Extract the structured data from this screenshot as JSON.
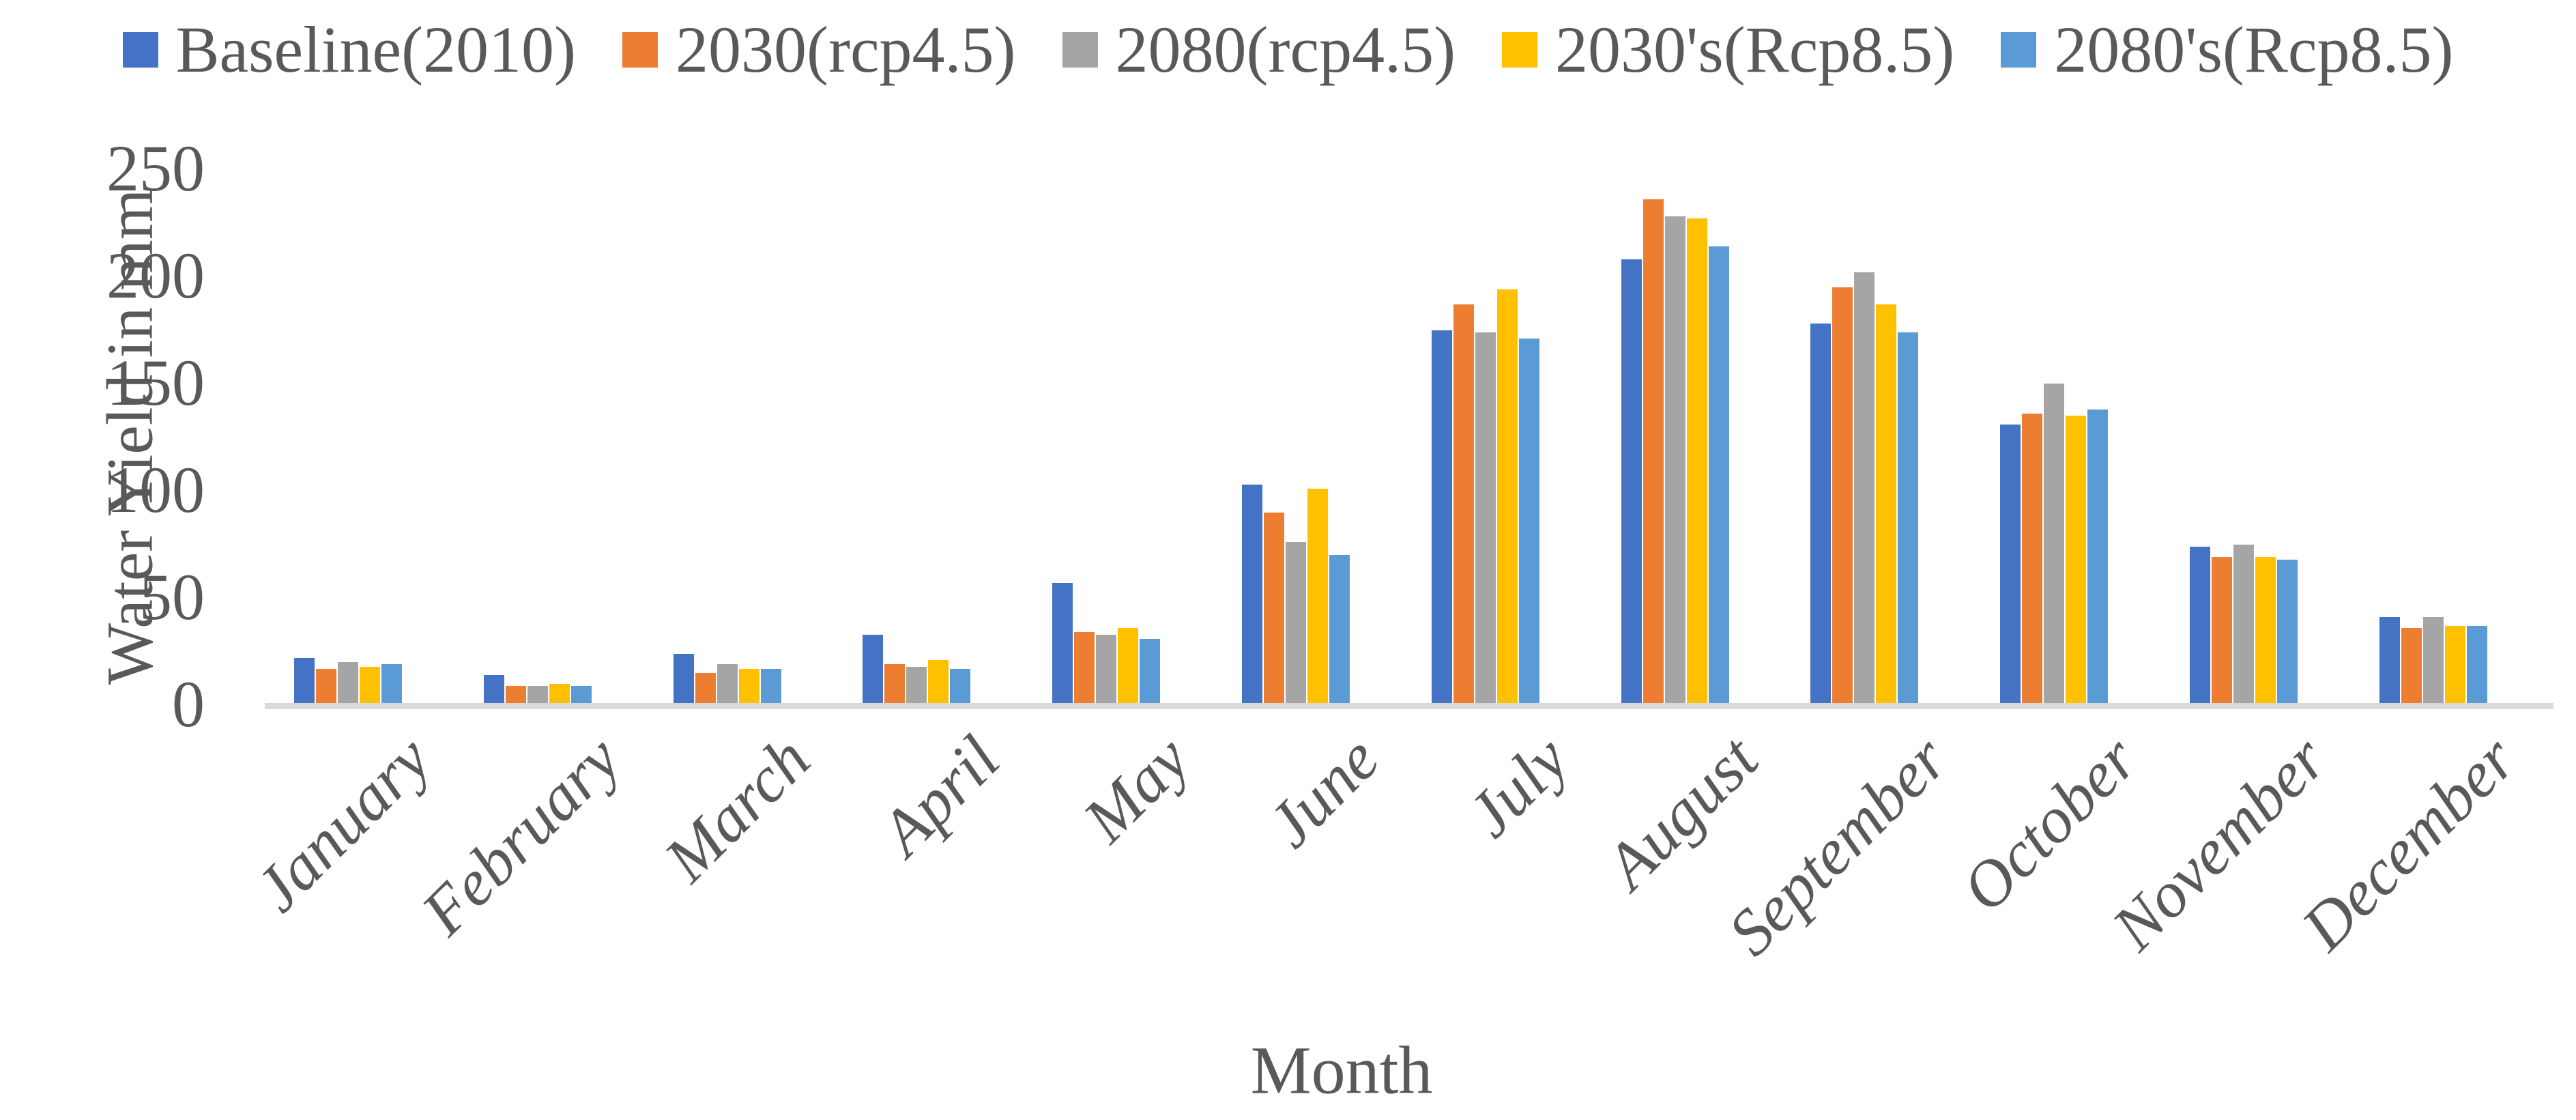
{
  "chart_data": {
    "type": "bar",
    "title": "",
    "xlabel": "Month",
    "ylabel": "Water Yield in mm",
    "ylim": [
      0,
      250
    ],
    "yticks": [
      0,
      50,
      100,
      150,
      200,
      250
    ],
    "grid": false,
    "legend_position": "top",
    "categories": [
      "January",
      "February",
      "March",
      "April",
      "May",
      "June",
      "July",
      "August",
      "September",
      "October",
      "November",
      "December"
    ],
    "series": [
      {
        "name": "Baseline(2010)",
        "color": "#4472C4",
        "values": [
          21,
          13,
          23,
          32,
          56,
          102,
          174,
          207,
          177,
          130,
          73,
          40
        ]
      },
      {
        "name": "2030(rcp4.5)",
        "color": "#ED7D31",
        "values": [
          16,
          8,
          14,
          18,
          33,
          89,
          186,
          235,
          194,
          135,
          68,
          35
        ]
      },
      {
        "name": "2080(rcp4.5)",
        "color": "#A5A5A5",
        "values": [
          19,
          8,
          18,
          17,
          32,
          75,
          173,
          227,
          201,
          149,
          74,
          40
        ]
      },
      {
        "name": "2030's(Rcp8.5)",
        "color": "#FFC000",
        "values": [
          17,
          9,
          16,
          20,
          35,
          100,
          193,
          226,
          186,
          134,
          68,
          36
        ]
      },
      {
        "name": "2080's(Rcp8.5)",
        "color": "#5B9BD5",
        "values": [
          18,
          8,
          16,
          16,
          30,
          69,
          170,
          213,
          173,
          137,
          67,
          36
        ]
      }
    ]
  },
  "styles": {
    "text_color": "#595959",
    "axis_line_color": "#D9D9D9",
    "background": "#FFFFFF"
  }
}
